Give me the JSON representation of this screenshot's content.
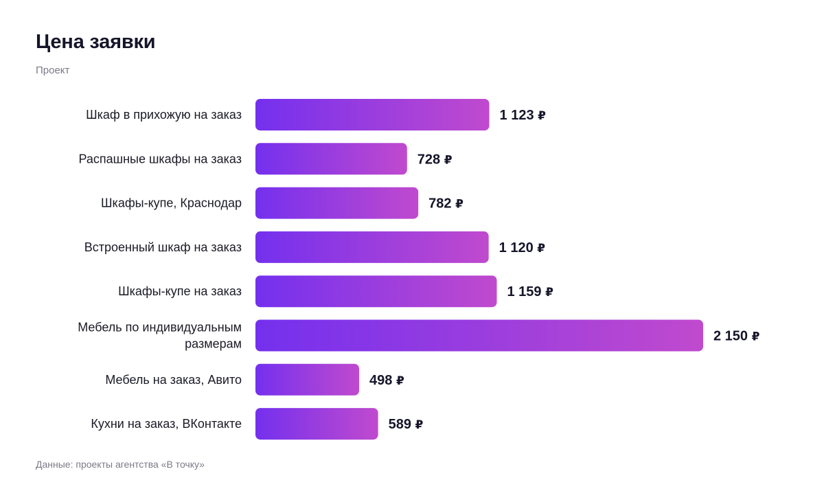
{
  "header": {
    "title": "Цена заявки",
    "subtitle": "Проект"
  },
  "footer": {
    "source": "Данные: проекты агентства «В точку»"
  },
  "colors": {
    "bar_start": "#7430ee",
    "bar_end": "#c04ace",
    "text": "#15152a"
  },
  "chart_data": {
    "type": "bar",
    "orientation": "horizontal",
    "title": "Цена заявки",
    "subtitle": "Проект",
    "currency_symbol": "₽",
    "categories": [
      [
        "Шкаф в прихожую на заказ"
      ],
      [
        "Распашные шкафы на заказ"
      ],
      [
        "Шкафы-купе, Краснодар"
      ],
      [
        "Встроенный шкаф на заказ"
      ],
      [
        "Шкафы-купе на заказ"
      ],
      [
        "Мебель по индивидуальным",
        "размерам"
      ],
      [
        "Мебель на заказ, Авито"
      ],
      [
        "Кухни на заказ, ВКонтакте"
      ]
    ],
    "values": [
      1123,
      728,
      782,
      1120,
      1159,
      2150,
      498,
      589
    ],
    "value_labels": [
      "1 123",
      "728",
      "782",
      "1 120",
      "1 159",
      "2 150",
      "498",
      "589"
    ],
    "xlim": [
      0,
      2150
    ],
    "grid": false,
    "legend": "none"
  }
}
